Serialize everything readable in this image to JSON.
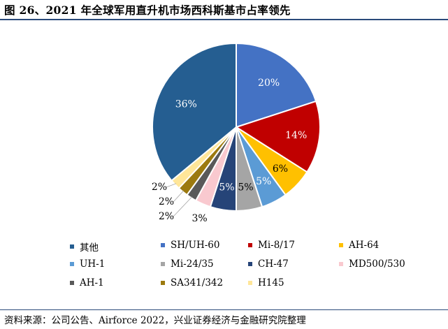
{
  "title": "图 26、2021 年全球军用直升机市场西科斯基市占率领先",
  "source": "资料来源：公司公告、Airforce 2022，兴业证券经济与金融研究院整理",
  "chart_data": {
    "type": "pie",
    "title": "",
    "start_angle_deg": 0,
    "direction": "clockwise",
    "series": [
      {
        "name": "SH/UH-60",
        "value": 20,
        "label": "20%",
        "color": "#4472C4"
      },
      {
        "name": "Mi-8/17",
        "value": 14,
        "label": "14%",
        "color": "#C00000"
      },
      {
        "name": "AH-64",
        "value": 6,
        "label": "6%",
        "color": "#FFC000"
      },
      {
        "name": "UH-1",
        "value": 5,
        "label": "5%",
        "color": "#5B9BD5"
      },
      {
        "name": "Mi-24/35",
        "value": 5,
        "label": "5%",
        "color": "#A5A5A5"
      },
      {
        "name": "CH-47",
        "value": 5,
        "label": "5%",
        "color": "#264478"
      },
      {
        "name": "MD500/530",
        "value": 3,
        "label": "3%",
        "color": "#F9C9CF"
      },
      {
        "name": "AH-1",
        "value": 2,
        "label": "2%",
        "color": "#595959"
      },
      {
        "name": "SA341/342",
        "value": 2,
        "label": "2%",
        "color": "#9C7A0F"
      },
      {
        "name": "H145",
        "value": 2,
        "label": "2%",
        "color": "#FFE699"
      },
      {
        "name": "其他",
        "value": 36,
        "label": "36%",
        "color": "#255E91"
      }
    ],
    "legend_order": [
      "其他",
      "SH/UH-60",
      "Mi-8/17",
      "AH-64",
      "UH-1",
      "Mi-24/35",
      "CH-47",
      "MD500/530",
      "AH-1",
      "SA341/342",
      "H145"
    ],
    "legend_position": "bottom"
  }
}
